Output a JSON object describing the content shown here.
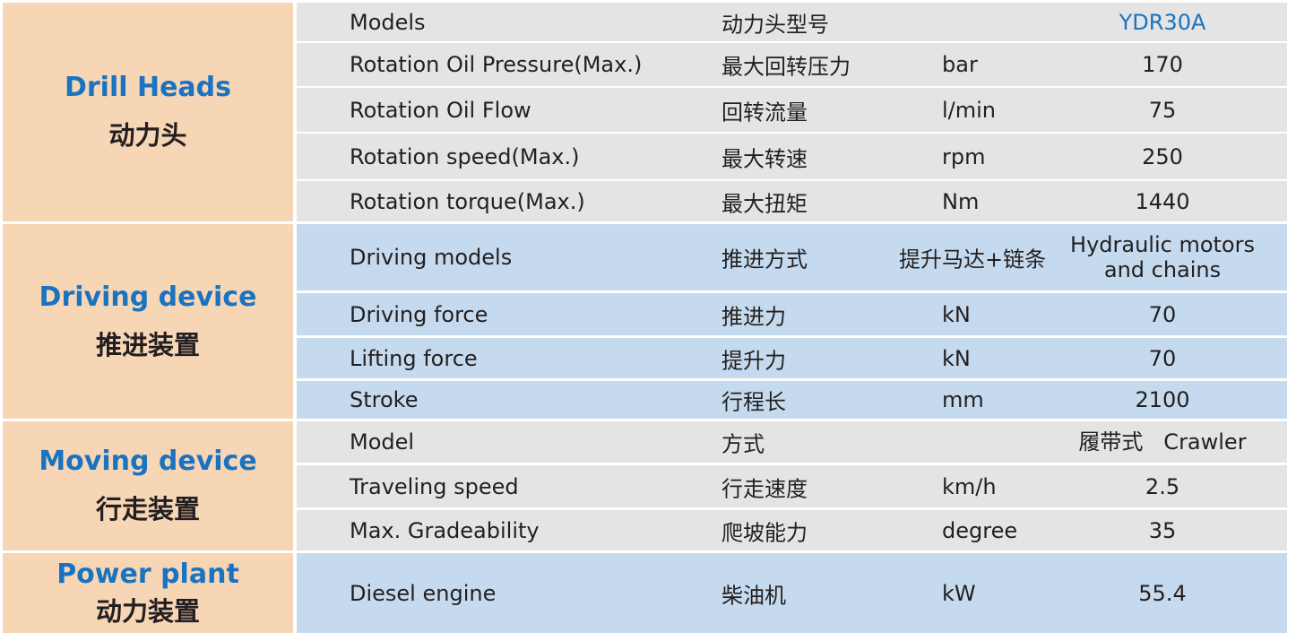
{
  "colors": {
    "heading_blue": "#1a73c0",
    "left_bg": "#f7d6b6",
    "grey_bg": "#e4e4e4",
    "blue_bg": "#c5daee"
  },
  "groups": [
    {
      "title_en": "Drill Heads",
      "title_cn": "动力头",
      "theme": "grey",
      "rows": [
        {
          "en": "Models",
          "cn": "动力头型号",
          "unit": "",
          "value": "YDR30A"
        },
        {
          "en": "Rotation Oil Pressure(Max.)",
          "cn": "最大回转压力",
          "unit": "bar",
          "value": "170"
        },
        {
          "en": "Rotation Oil Flow",
          "cn": "回转流量",
          "unit": "l/min",
          "value": "75"
        },
        {
          "en": "Rotation speed(Max.)",
          "cn": "最大转速",
          "unit": "rpm",
          "value": "250"
        },
        {
          "en": "Rotation torque(Max.)",
          "cn": "最大扭矩",
          "unit": "Nm",
          "value": "1440"
        }
      ]
    },
    {
      "title_en": "Driving device",
      "title_cn": "推进装置",
      "theme": "blue",
      "rows": [
        {
          "en": "Driving models",
          "cn": "推进方式",
          "unit": "提升马达+链条",
          "value": "Hydraulic motors\nand chains"
        },
        {
          "en": "Driving force",
          "cn": "推进力",
          "unit": "kN",
          "value": "70"
        },
        {
          "en": "Lifting force",
          "cn": "提升力",
          "unit": "kN",
          "value": "70"
        },
        {
          "en": "Stroke",
          "cn": "行程长",
          "unit": "mm",
          "value": "2100"
        }
      ]
    },
    {
      "title_en": "Moving device",
      "title_cn": "行走装置",
      "theme": "grey",
      "rows": [
        {
          "en": "Model",
          "cn": "方式",
          "unit": "",
          "value": "履带式   Crawler"
        },
        {
          "en": "Traveling speed",
          "cn": "行走速度",
          "unit": "km/h",
          "value": "2.5"
        },
        {
          "en": "Max. Gradeability",
          "cn": "爬坡能力",
          "unit": "degree",
          "value": "35"
        }
      ]
    },
    {
      "title_en": "Power plant",
      "title_cn": "动力装置",
      "theme": "blue",
      "rows": [
        {
          "en": "Diesel engine",
          "cn": "柴油机",
          "unit": "kW",
          "value": "55.4"
        }
      ]
    }
  ]
}
